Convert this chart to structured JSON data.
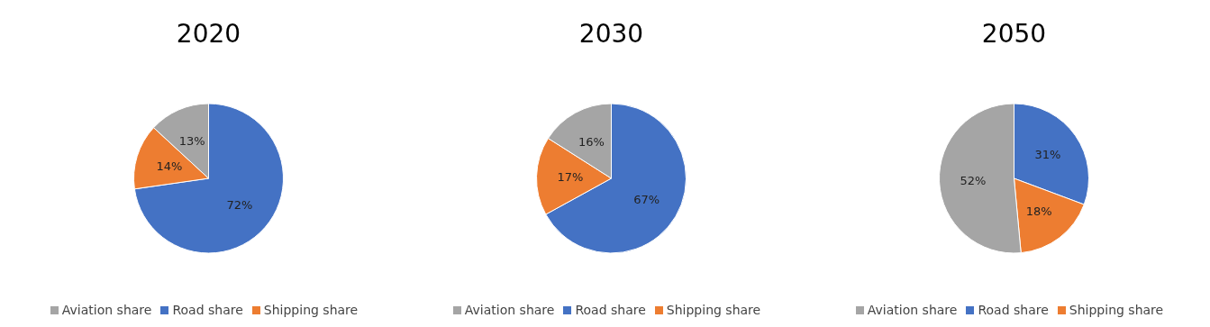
{
  "chart_data": [
    {
      "type": "pie",
      "title": "2020",
      "categories": [
        "Road share",
        "Shipping share",
        "Aviation share"
      ],
      "values": [
        72,
        14,
        13
      ],
      "colors": [
        "#4472c4",
        "#ed7d31",
        "#a5a5a5"
      ],
      "value_labels": [
        "72%",
        "14%",
        "13%"
      ],
      "legend": "bottom"
    },
    {
      "type": "pie",
      "title": "2030",
      "categories": [
        "Road share",
        "Shipping share",
        "Aviation share"
      ],
      "values": [
        67,
        17,
        16
      ],
      "colors": [
        "#4472c4",
        "#ed7d31",
        "#a5a5a5"
      ],
      "value_labels": [
        "67%",
        "17%",
        "16%"
      ],
      "legend": "bottom"
    },
    {
      "type": "pie",
      "title": "2050",
      "categories": [
        "Road share",
        "Shipping share",
        "Aviation share"
      ],
      "values": [
        31,
        18,
        52
      ],
      "colors": [
        "#4472c4",
        "#ed7d31",
        "#a5a5a5"
      ],
      "value_labels": [
        "31%",
        "18%",
        "52%"
      ],
      "legend": "bottom"
    }
  ]
}
